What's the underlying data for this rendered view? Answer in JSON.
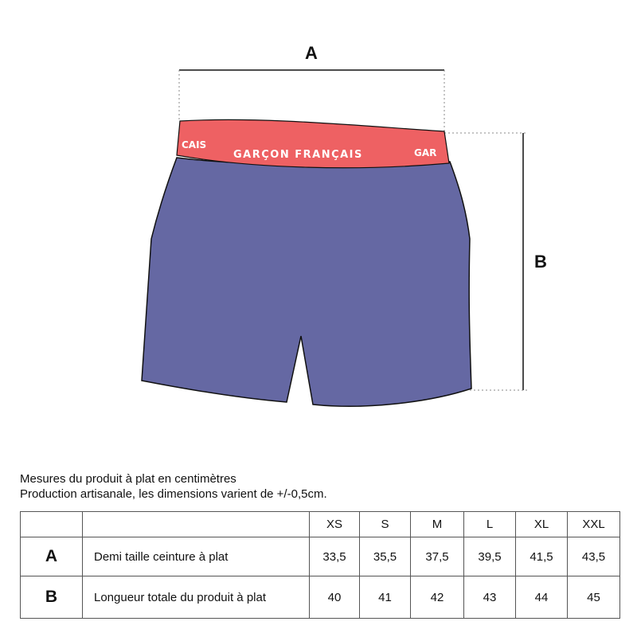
{
  "diagram": {
    "label_a": "A",
    "label_b": "B",
    "waistband_print": [
      "CAIS",
      "GARÇON FRANÇAIS",
      "GAR"
    ],
    "colors": {
      "waistband": "#ee6163",
      "body": "#6568a3"
    }
  },
  "notes": {
    "line1": "Mesures du produit à plat en centimètres",
    "line2": "Production artisanale, les dimensions varient de +/-0,5cm."
  },
  "table": {
    "sizes": [
      "XS",
      "S",
      "M",
      "L",
      "XL",
      "XXL"
    ],
    "rows": [
      {
        "key": "A",
        "label": "Demi taille ceinture à plat",
        "values": [
          "33,5",
          "35,5",
          "37,5",
          "39,5",
          "41,5",
          "43,5"
        ]
      },
      {
        "key": "B",
        "label": "Longueur totale du produit à plat",
        "values": [
          "40",
          "41",
          "42",
          "43",
          "44",
          "45"
        ]
      }
    ]
  }
}
